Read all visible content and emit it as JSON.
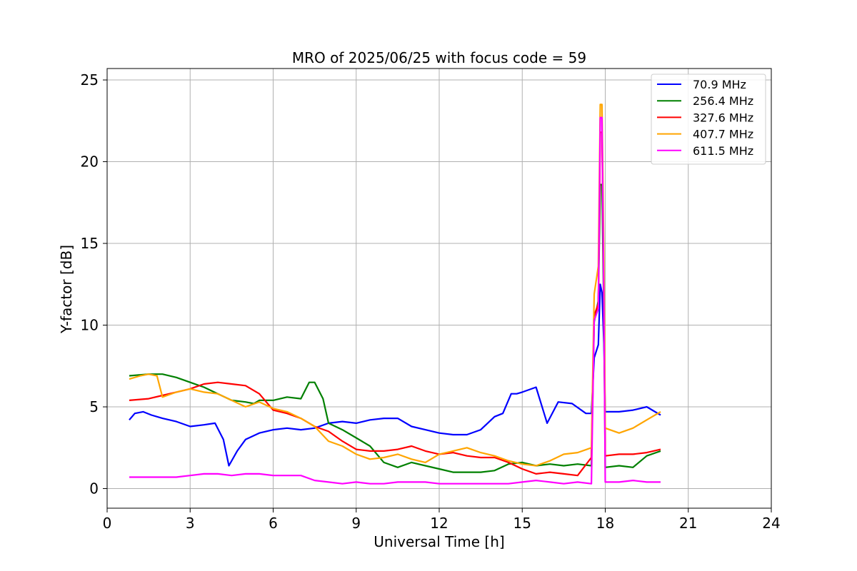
{
  "chart_data": {
    "type": "line",
    "title": "MRO of 2025/06/25 with focus code = 59",
    "xlabel": "Universal Time [h]",
    "ylabel": "Y-factor [dB]",
    "xlim": [
      0,
      24
    ],
    "ylim": [
      -1.2,
      25.7
    ],
    "xticks": [
      0,
      3,
      6,
      9,
      12,
      15,
      18,
      21,
      24
    ],
    "yticks": [
      0,
      5,
      10,
      15,
      20,
      25
    ],
    "grid": true,
    "legend_position": "top-right",
    "series": [
      {
        "name": " 70.9 MHz",
        "color": "#0000ff",
        "x": [
          0.8,
          1.0,
          1.3,
          1.6,
          2.0,
          2.5,
          3.0,
          3.5,
          3.9,
          4.2,
          4.4,
          4.7,
          5.0,
          5.5,
          6.0,
          6.5,
          7.0,
          7.5,
          8.0,
          8.5,
          9.0,
          9.5,
          10.0,
          10.5,
          11.0,
          11.5,
          12.0,
          12.5,
          13.0,
          13.5,
          14.0,
          14.3,
          14.6,
          14.8,
          15.0,
          15.5,
          15.9,
          16.3,
          16.8,
          17.3,
          17.5,
          17.6,
          17.75,
          17.82,
          17.88,
          17.95,
          18.0,
          18.5,
          19.0,
          19.5,
          20.0
        ],
        "values": [
          4.2,
          4.6,
          4.7,
          4.5,
          4.3,
          4.1,
          3.8,
          3.9,
          4.0,
          3.0,
          1.4,
          2.3,
          3.0,
          3.4,
          3.6,
          3.7,
          3.6,
          3.7,
          4.0,
          4.1,
          4.0,
          4.2,
          4.3,
          4.3,
          3.8,
          3.6,
          3.4,
          3.3,
          3.3,
          3.6,
          4.4,
          4.6,
          5.8,
          5.8,
          5.9,
          6.2,
          4.0,
          5.3,
          5.2,
          4.6,
          4.6,
          8.0,
          8.8,
          12.5,
          12.0,
          8.9,
          4.7,
          4.7,
          4.8,
          5.0,
          4.5
        ]
      },
      {
        "name": "256.4 MHz",
        "color": "#008000",
        "x": [
          0.8,
          1.5,
          2.0,
          2.5,
          3.0,
          3.5,
          4.0,
          4.5,
          5.0,
          5.3,
          5.5,
          6.0,
          6.5,
          7.0,
          7.3,
          7.5,
          7.8,
          8.0,
          8.5,
          9.0,
          9.5,
          10.0,
          10.5,
          11.0,
          11.5,
          12.0,
          12.5,
          13.0,
          13.5,
          14.0,
          14.5,
          15.0,
          15.5,
          16.0,
          16.5,
          17.0,
          17.5,
          17.6,
          17.75,
          17.82,
          17.88,
          17.95,
          18.0,
          18.5,
          19.0,
          19.5,
          20.0
        ],
        "values": [
          6.9,
          7.0,
          7.0,
          6.8,
          6.5,
          6.2,
          5.8,
          5.4,
          5.3,
          5.2,
          5.4,
          5.4,
          5.6,
          5.5,
          6.5,
          6.5,
          5.5,
          4.0,
          3.6,
          3.1,
          2.6,
          1.6,
          1.3,
          1.6,
          1.4,
          1.2,
          1.0,
          1.0,
          1.0,
          1.1,
          1.5,
          1.6,
          1.4,
          1.5,
          1.4,
          1.5,
          1.4,
          10.2,
          11.5,
          18.6,
          18.6,
          10.5,
          1.3,
          1.4,
          1.3,
          2.0,
          2.3
        ]
      },
      {
        "name": "327.6 MHz",
        "color": "#ff0000",
        "x": [
          0.8,
          1.5,
          2.0,
          2.5,
          3.0,
          3.5,
          4.0,
          4.5,
          5.0,
          5.5,
          6.0,
          6.5,
          7.0,
          7.5,
          8.0,
          8.5,
          9.0,
          9.5,
          10.0,
          10.5,
          11.0,
          11.5,
          12.0,
          12.5,
          13.0,
          13.5,
          14.0,
          14.5,
          15.0,
          15.5,
          16.0,
          16.5,
          17.0,
          17.5,
          17.6,
          17.75,
          17.82,
          17.88,
          17.95,
          18.0,
          18.5,
          19.0,
          19.5,
          20.0
        ],
        "values": [
          5.4,
          5.5,
          5.7,
          5.9,
          6.1,
          6.4,
          6.5,
          6.4,
          6.3,
          5.8,
          4.8,
          4.6,
          4.3,
          3.8,
          3.5,
          2.9,
          2.4,
          2.3,
          2.3,
          2.4,
          2.6,
          2.3,
          2.1,
          2.2,
          2.0,
          1.9,
          1.9,
          1.6,
          1.2,
          0.9,
          1.0,
          0.9,
          0.8,
          1.9,
          10.6,
          11.3,
          21.8,
          21.8,
          11.6,
          2.0,
          2.1,
          2.1,
          2.2,
          2.4
        ]
      },
      {
        "name": "407.7 MHz",
        "color": "#ffa500",
        "x": [
          0.8,
          1.2,
          1.5,
          1.8,
          2.0,
          2.5,
          3.0,
          3.5,
          4.0,
          4.5,
          5.0,
          5.5,
          6.0,
          6.5,
          7.0,
          7.5,
          8.0,
          8.5,
          9.0,
          9.5,
          10.0,
          10.5,
          11.0,
          11.5,
          12.0,
          12.5,
          13.0,
          13.5,
          14.0,
          14.5,
          15.0,
          15.5,
          16.0,
          16.5,
          17.0,
          17.5,
          17.6,
          17.75,
          17.82,
          17.88,
          17.95,
          18.0,
          18.5,
          19.0,
          19.5,
          20.0
        ],
        "values": [
          6.7,
          6.9,
          7.0,
          6.9,
          5.6,
          5.9,
          6.1,
          5.9,
          5.8,
          5.4,
          5.0,
          5.3,
          4.9,
          4.7,
          4.3,
          3.8,
          2.9,
          2.6,
          2.1,
          1.8,
          1.9,
          2.1,
          1.8,
          1.6,
          2.1,
          2.3,
          2.5,
          2.2,
          2.0,
          1.7,
          1.5,
          1.4,
          1.7,
          2.1,
          2.2,
          2.5,
          11.9,
          13.6,
          23.5,
          23.5,
          13.9,
          3.7,
          3.4,
          3.7,
          4.2,
          4.7
        ]
      },
      {
        "name": "611.5 MHz",
        "color": "#ff00ff",
        "x": [
          0.8,
          1.5,
          2.0,
          2.5,
          3.0,
          3.5,
          4.0,
          4.5,
          5.0,
          5.5,
          6.0,
          6.5,
          7.0,
          7.5,
          8.0,
          8.5,
          9.0,
          9.5,
          10.0,
          10.5,
          11.0,
          11.5,
          12.0,
          12.5,
          13.0,
          13.5,
          14.0,
          14.5,
          15.0,
          15.5,
          16.0,
          16.5,
          17.0,
          17.5,
          17.6,
          17.75,
          17.82,
          17.88,
          17.95,
          18.0,
          18.5,
          19.0,
          19.5,
          20.0
        ],
        "values": [
          0.7,
          0.7,
          0.7,
          0.7,
          0.8,
          0.9,
          0.9,
          0.8,
          0.9,
          0.9,
          0.8,
          0.8,
          0.8,
          0.5,
          0.4,
          0.3,
          0.4,
          0.3,
          0.3,
          0.4,
          0.4,
          0.4,
          0.3,
          0.3,
          0.3,
          0.3,
          0.3,
          0.3,
          0.4,
          0.5,
          0.4,
          0.3,
          0.4,
          0.3,
          10.3,
          11.0,
          22.7,
          22.7,
          11.2,
          0.4,
          0.4,
          0.5,
          0.4,
          0.4
        ]
      }
    ]
  }
}
